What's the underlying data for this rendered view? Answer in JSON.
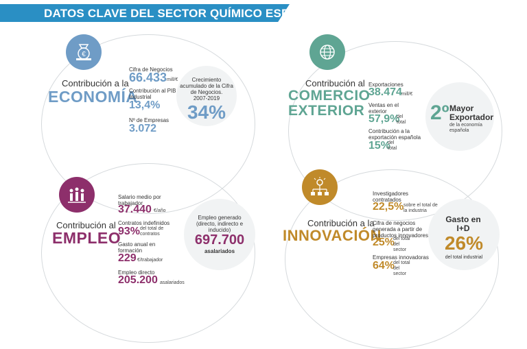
{
  "title": "DATOS CLAVE DEL SECTOR QUÍMICO ESPAÑOL",
  "colors": {
    "banner": "#2a8fc4",
    "economia": "#6f9cc6",
    "comercio": "#5fa593",
    "empleo": "#8d2f6b",
    "innovacion": "#c08a2a"
  },
  "economia": {
    "icon": "money-bag-icon",
    "pre": "Contribución a la",
    "head": "ECONOMÍA",
    "cifra_label": "Cifra de Negocios",
    "cifra_value": "66.433",
    "cifra_unit": "mill/€",
    "pib_label": "Contribución al PIB Industrial",
    "pib_value": "13,4%",
    "empresas_label": "Nº de Empresas",
    "empresas_value": "3.072",
    "bubble_label": "Crecimiento acumulado de la Cifra de Negocios.",
    "bubble_years": "2007-2019",
    "bubble_value": "34%"
  },
  "comercio": {
    "icon": "globe-icon",
    "pre": "Contribución al",
    "head1": "COMERCIO",
    "head2": "EXTERIOR",
    "export_label": "Exportaciones",
    "export_value": "38.474",
    "export_unit": "mill/€",
    "ventas_label": "Ventas en el exterior",
    "ventas_value": "57,9%",
    "ventas_unit": "del total",
    "contrib_label": "Contribución a la exportación española",
    "contrib_value": "15%",
    "contrib_unit": "del total",
    "bubble_rank": "2º",
    "bubble_title": "Mayor Exportador",
    "bubble_sub": "de la economía española"
  },
  "empleo": {
    "icon": "people-icon",
    "pre": "Contribución al",
    "head": "EMPLEO",
    "salario_label": "Salario medio por trabajador",
    "salario_value": "37.440",
    "salario_unit": "€/año",
    "contratos_label": "Contratos indefinidos",
    "contratos_value": "93%",
    "contratos_unit": "del total de contratos",
    "gasto_label": "Gasto anual en formación",
    "gasto_value": "229",
    "gasto_unit": "€/trabajador",
    "directo_label": "Empleo directo",
    "directo_value": "205.200",
    "directo_unit": "asalariados",
    "bubble_label": "Empleo generado",
    "bubble_sub": "(directo, indirecto e inducido)",
    "bubble_value": "697.700",
    "bubble_unit": "asalariados"
  },
  "innovacion": {
    "icon": "network-lightbulb-icon",
    "pre": "Contribución a la",
    "head": "INNOVACIÓN",
    "invest_label": "Investigadores contratados",
    "invest_value": "22,5%",
    "invest_unit": "sobre el total de la industria",
    "cifra_label": "Cifra de negocios generada a partir de productos innovadores",
    "cifra_value": "25%",
    "cifra_unit": "del total del sector",
    "empresas_label": "Empresas innovadoras",
    "empresas_value": "64%",
    "empresas_unit": "del total del sector",
    "bubble_label": "Gasto en I+D",
    "bubble_value": "26%",
    "bubble_unit": "del total industrial"
  }
}
